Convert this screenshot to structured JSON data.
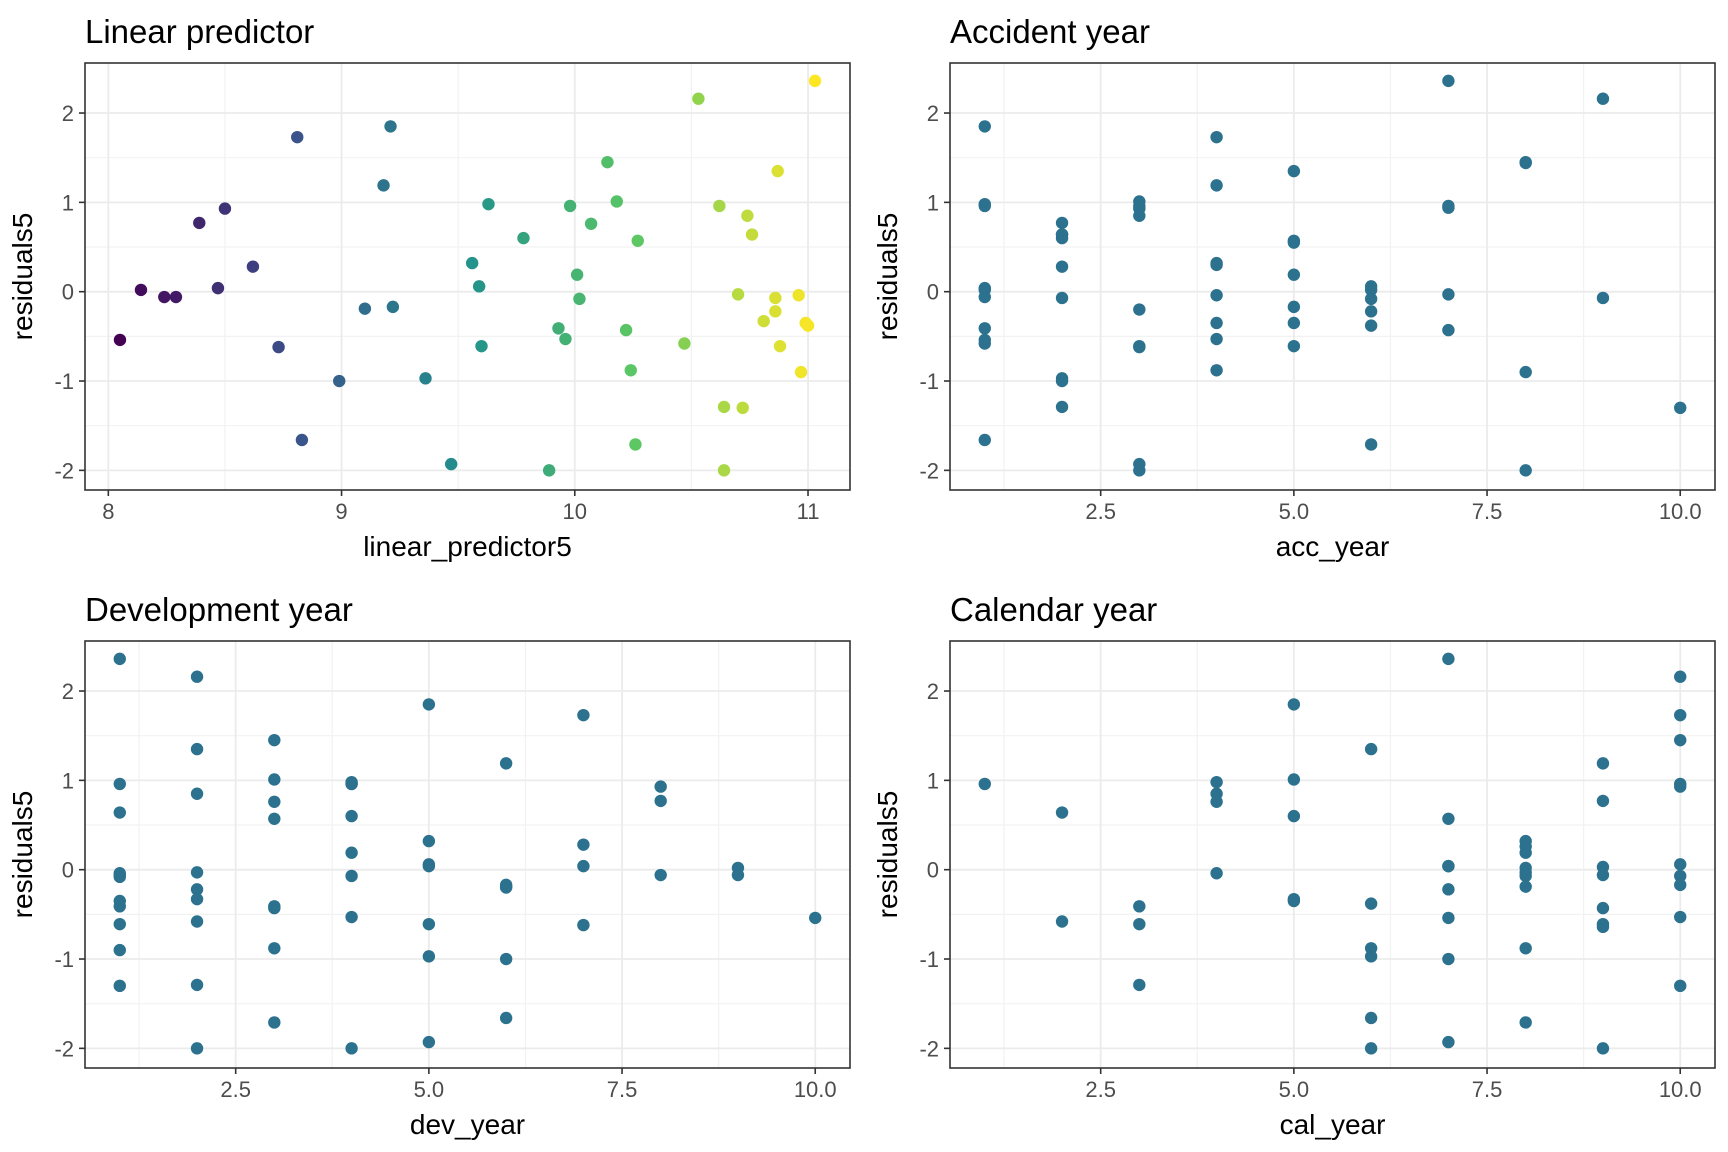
{
  "chart_data": [
    {
      "type": "scatter",
      "title": "Linear predictor",
      "xlabel": "linear_predictor5",
      "ylabel": "residuals5",
      "xlim": [
        7.9,
        11.18
      ],
      "ylim": [
        -2.22,
        2.56
      ],
      "xticks": [
        "8",
        "9",
        "10",
        "11"
      ],
      "xtick_values": [
        8,
        9,
        10,
        11
      ],
      "xminor_values": [
        8.5,
        9.5,
        10.5
      ],
      "yticks": [
        "-2",
        "-1",
        "0",
        "1",
        "2"
      ],
      "ytick_values": [
        -2,
        -1,
        0,
        1,
        2
      ],
      "yminor_values": [
        -1.5,
        -0.5,
        0.5,
        1.5
      ],
      "grid": true,
      "color_scale": [
        "#440154",
        "#3b528b",
        "#21918c",
        "#5ec962",
        "#fde725"
      ],
      "point_color": "#2c728e",
      "x": [
        8.05,
        8.14,
        8.24,
        8.29,
        8.39,
        8.47,
        8.5,
        8.62,
        8.73,
        8.81,
        8.83,
        8.99,
        9.1,
        9.18,
        9.21,
        9.22,
        9.36,
        9.47,
        9.56,
        9.59,
        9.6,
        9.63,
        9.78,
        9.89,
        9.93,
        9.96,
        9.98,
        10.01,
        10.02,
        10.07,
        10.14,
        10.18,
        10.22,
        10.24,
        10.26,
        10.27,
        10.47,
        10.53,
        10.62,
        10.64,
        10.64,
        10.7,
        10.72,
        10.74,
        10.76,
        10.81,
        10.86,
        10.86,
        10.87,
        10.88,
        10.96,
        10.97,
        10.99,
        11.0,
        11.03
      ],
      "y": [
        -0.54,
        0.02,
        -0.06,
        -0.06,
        0.77,
        0.04,
        0.93,
        0.28,
        -0.62,
        1.73,
        -1.66,
        -1.0,
        -0.19,
        1.19,
        1.85,
        -0.17,
        -0.97,
        -1.93,
        0.32,
        0.06,
        -0.61,
        0.98,
        0.6,
        -2.0,
        -0.41,
        -0.53,
        0.96,
        0.19,
        -0.08,
        0.76,
        1.45,
        1.01,
        -0.43,
        -0.88,
        -1.71,
        0.57,
        -0.58,
        2.16,
        0.96,
        -1.29,
        -2.0,
        -0.03,
        -1.3,
        0.85,
        0.64,
        -0.33,
        -0.07,
        -0.22,
        1.35,
        -0.61,
        -0.04,
        -0.9,
        -0.35,
        -0.38,
        2.36
      ]
    },
    {
      "type": "scatter",
      "title": "Accident year",
      "xlabel": "acc_year",
      "ylabel": "residuals5",
      "xlim": [
        0.55,
        10.45
      ],
      "ylim": [
        -2.22,
        2.56
      ],
      "xticks": [
        "2.5",
        "5.0",
        "7.5",
        "10.0"
      ],
      "xtick_values": [
        2.5,
        5.0,
        7.5,
        10.0
      ],
      "xminor_values": [
        1.25,
        3.75,
        6.25,
        8.75
      ],
      "yticks": [
        "-2",
        "-1",
        "0",
        "1",
        "2"
      ],
      "ytick_values": [
        -2,
        -1,
        0,
        1,
        2
      ],
      "yminor_values": [
        -1.5,
        -0.5,
        0.5,
        1.5
      ],
      "grid": true,
      "point_color": "#2c728e",
      "x": [
        1,
        1,
        1,
        1,
        1,
        1,
        1,
        1,
        1,
        1,
        2,
        2,
        2,
        2,
        2,
        2,
        2,
        2,
        2,
        3,
        3,
        3,
        3,
        3,
        3,
        3,
        3,
        3,
        4,
        4,
        4,
        4,
        4,
        4,
        4,
        4,
        5,
        5,
        5,
        5,
        5,
        5,
        5,
        6,
        6,
        6,
        6,
        6,
        6,
        7,
        7,
        7,
        7,
        7,
        8,
        8,
        8,
        8,
        9,
        9,
        10
      ],
      "y": [
        1.85,
        0.98,
        0.96,
        0.04,
        -0.06,
        -0.41,
        -0.54,
        -0.58,
        -1.66,
        0.02,
        0.77,
        0.64,
        0.6,
        0.28,
        -0.07,
        -0.97,
        -1.0,
        -1.29,
        0.64,
        1.01,
        0.93,
        0.85,
        -0.2,
        -0.61,
        -0.62,
        -1.93,
        -2.0,
        0.96,
        1.73,
        1.19,
        0.32,
        -0.04,
        -0.35,
        -0.53,
        -0.88,
        0.3,
        1.35,
        0.57,
        0.19,
        -0.17,
        -0.35,
        -0.61,
        0.55,
        0.06,
        -0.08,
        -0.22,
        -0.38,
        -1.71,
        0.02,
        2.36,
        0.96,
        -0.03,
        -0.43,
        0.94,
        1.45,
        -0.9,
        -2.0,
        1.44,
        2.16,
        -0.07,
        -1.3
      ]
    },
    {
      "type": "scatter",
      "title": "Development year",
      "xlabel": "dev_year",
      "ylabel": "residuals5",
      "xlim": [
        0.55,
        10.45
      ],
      "ylim": [
        -2.22,
        2.56
      ],
      "xticks": [
        "2.5",
        "5.0",
        "7.5",
        "10.0"
      ],
      "xtick_values": [
        2.5,
        5.0,
        7.5,
        10.0
      ],
      "xminor_values": [
        1.25,
        3.75,
        6.25,
        8.75
      ],
      "yticks": [
        "-2",
        "-1",
        "0",
        "1",
        "2"
      ],
      "ytick_values": [
        -2,
        -1,
        0,
        1,
        2
      ],
      "yminor_values": [
        -1.5,
        -0.5,
        0.5,
        1.5
      ],
      "grid": true,
      "point_color": "#2c728e",
      "x": [
        1,
        1,
        1,
        1,
        1,
        1,
        1,
        1,
        1,
        1,
        1,
        2,
        2,
        2,
        2,
        2,
        2,
        2,
        2,
        2,
        3,
        3,
        3,
        3,
        3,
        3,
        3,
        3,
        4,
        4,
        4,
        4,
        4,
        4,
        4,
        4,
        5,
        5,
        5,
        5,
        5,
        5,
        5,
        6,
        6,
        6,
        6,
        6,
        6,
        7,
        7,
        7,
        7,
        8,
        8,
        8,
        9,
        9,
        10
      ],
      "y": [
        2.36,
        0.96,
        0.64,
        -0.04,
        -0.08,
        -0.35,
        -0.41,
        -0.61,
        -0.9,
        -1.3,
        -0.06,
        2.16,
        1.35,
        0.85,
        -0.03,
        -0.22,
        -0.33,
        -0.58,
        -1.29,
        -2.0,
        1.45,
        1.01,
        0.76,
        0.57,
        -0.41,
        -0.43,
        -0.88,
        -1.71,
        0.98,
        0.96,
        0.6,
        0.19,
        -0.07,
        -0.53,
        -2.0,
        0.96,
        1.85,
        0.32,
        0.06,
        -0.61,
        -0.97,
        -1.93,
        0.04,
        1.19,
        -0.17,
        -0.19,
        -1.0,
        -1.66,
        -0.2,
        1.73,
        0.28,
        0.04,
        -0.62,
        0.93,
        0.77,
        -0.06,
        0.02,
        -0.06,
        -0.54
      ]
    },
    {
      "type": "scatter",
      "title": "Calendar year",
      "xlabel": "cal_year",
      "ylabel": "residuals5",
      "xlim": [
        0.55,
        10.45
      ],
      "ylim": [
        -2.22,
        2.56
      ],
      "xticks": [
        "2.5",
        "5.0",
        "7.5",
        "10.0"
      ],
      "xtick_values": [
        2.5,
        5.0,
        7.5,
        10.0
      ],
      "xminor_values": [
        1.25,
        3.75,
        6.25,
        8.75
      ],
      "yticks": [
        "-2",
        "-1",
        "0",
        "1",
        "2"
      ],
      "ytick_values": [
        -2,
        -1,
        0,
        1,
        2
      ],
      "yminor_values": [
        -1.5,
        -0.5,
        0.5,
        1.5
      ],
      "grid": true,
      "point_color": "#2c728e",
      "x": [
        1,
        2,
        2,
        3,
        3,
        3,
        4,
        4,
        4,
        4,
        5,
        5,
        5,
        5,
        5,
        6,
        6,
        6,
        6,
        6,
        6,
        7,
        7,
        7,
        7,
        7,
        7,
        7,
        7,
        8,
        8,
        8,
        8,
        8,
        8,
        8,
        8,
        8,
        9,
        9,
        9,
        9,
        9,
        9,
        9,
        9,
        10,
        10,
        10,
        10,
        10,
        10,
        10,
        10,
        10,
        10
      ],
      "y": [
        0.96,
        0.64,
        -0.58,
        -0.41,
        -0.61,
        -1.29,
        0.98,
        0.85,
        0.76,
        -0.04,
        1.85,
        1.01,
        0.6,
        -0.33,
        -0.35,
        1.35,
        -0.38,
        -0.88,
        -0.97,
        -1.66,
        -2.0,
        2.36,
        0.57,
        0.04,
        -0.22,
        -0.54,
        -1.0,
        -1.93,
        0.04,
        0.32,
        0.26,
        0.19,
        -0.03,
        -0.07,
        -0.19,
        -0.88,
        -1.71,
        0.02,
        1.19,
        0.77,
        0.03,
        -0.06,
        -0.43,
        -0.61,
        -0.64,
        -2.0,
        2.16,
        1.73,
        1.45,
        0.96,
        0.93,
        0.06,
        -0.07,
        -0.17,
        -0.53,
        -1.3
      ]
    }
  ]
}
